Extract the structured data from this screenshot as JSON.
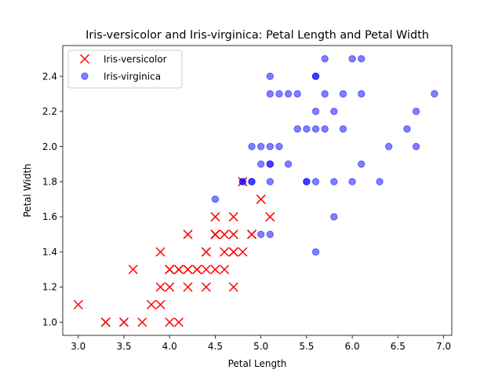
{
  "chart_data": {
    "type": "scatter",
    "title": "Iris-versicolor and Iris-virginica: Petal Length and Petal Width",
    "xlabel": "Petal Length",
    "ylabel": "Petal Width",
    "xlim": [
      2.83,
      7.09
    ],
    "ylim": [
      0.925,
      2.575
    ],
    "xticks": [
      "3.0",
      "3.5",
      "4.0",
      "4.5",
      "5.0",
      "5.5",
      "6.0",
      "6.5",
      "7.0"
    ],
    "yticks": [
      "1.0",
      "1.2",
      "1.4",
      "1.6",
      "1.8",
      "2.0",
      "2.2",
      "2.4"
    ],
    "legend_position": "upper-left",
    "grid": false,
    "series": [
      {
        "name": "Iris-versicolor",
        "marker": "x",
        "color": "#ff0000",
        "points": [
          [
            4.7,
            1.4
          ],
          [
            4.5,
            1.5
          ],
          [
            4.9,
            1.5
          ],
          [
            4.0,
            1.3
          ],
          [
            4.6,
            1.5
          ],
          [
            4.5,
            1.3
          ],
          [
            4.7,
            1.6
          ],
          [
            3.3,
            1.0
          ],
          [
            4.6,
            1.3
          ],
          [
            3.9,
            1.4
          ],
          [
            3.5,
            1.0
          ],
          [
            4.2,
            1.5
          ],
          [
            4.0,
            1.0
          ],
          [
            4.7,
            1.4
          ],
          [
            3.6,
            1.3
          ],
          [
            4.4,
            1.4
          ],
          [
            4.5,
            1.5
          ],
          [
            4.1,
            1.0
          ],
          [
            4.5,
            1.5
          ],
          [
            3.9,
            1.1
          ],
          [
            4.8,
            1.8
          ],
          [
            4.0,
            1.3
          ],
          [
            4.9,
            1.5
          ],
          [
            4.7,
            1.2
          ],
          [
            4.3,
            1.3
          ],
          [
            4.4,
            1.4
          ],
          [
            4.8,
            1.4
          ],
          [
            5.0,
            1.7
          ],
          [
            4.5,
            1.5
          ],
          [
            3.5,
            1.0
          ],
          [
            3.8,
            1.1
          ],
          [
            3.7,
            1.0
          ],
          [
            3.9,
            1.2
          ],
          [
            5.1,
            1.6
          ],
          [
            4.5,
            1.5
          ],
          [
            4.5,
            1.6
          ],
          [
            4.7,
            1.5
          ],
          [
            4.4,
            1.3
          ],
          [
            4.1,
            1.3
          ],
          [
            4.0,
            1.3
          ],
          [
            4.4,
            1.2
          ],
          [
            4.6,
            1.4
          ],
          [
            4.0,
            1.2
          ],
          [
            3.3,
            1.0
          ],
          [
            4.2,
            1.3
          ],
          [
            4.2,
            1.2
          ],
          [
            4.2,
            1.3
          ],
          [
            4.3,
            1.3
          ],
          [
            3.0,
            1.1
          ],
          [
            4.1,
            1.3
          ]
        ]
      },
      {
        "name": "Iris-virginica",
        "marker": "o",
        "color": "#0000ff",
        "points": [
          [
            6.0,
            2.5
          ],
          [
            5.1,
            1.9
          ],
          [
            5.9,
            2.1
          ],
          [
            5.6,
            1.8
          ],
          [
            5.8,
            2.2
          ],
          [
            6.6,
            2.1
          ],
          [
            4.5,
            1.7
          ],
          [
            6.3,
            1.8
          ],
          [
            5.8,
            1.8
          ],
          [
            6.1,
            2.5
          ],
          [
            5.1,
            2.0
          ],
          [
            5.3,
            1.9
          ],
          [
            5.5,
            2.1
          ],
          [
            5.0,
            2.0
          ],
          [
            5.1,
            2.4
          ],
          [
            5.3,
            2.3
          ],
          [
            5.5,
            1.8
          ],
          [
            6.7,
            2.2
          ],
          [
            6.9,
            2.3
          ],
          [
            5.0,
            1.5
          ],
          [
            5.7,
            2.3
          ],
          [
            4.9,
            2.0
          ],
          [
            6.7,
            2.0
          ],
          [
            4.9,
            1.8
          ],
          [
            5.7,
            2.1
          ],
          [
            6.0,
            1.8
          ],
          [
            4.8,
            1.8
          ],
          [
            4.9,
            1.8
          ],
          [
            5.6,
            2.1
          ],
          [
            5.8,
            1.6
          ],
          [
            6.1,
            1.9
          ],
          [
            6.4,
            2.0
          ],
          [
            5.6,
            2.2
          ],
          [
            5.1,
            1.5
          ],
          [
            5.6,
            1.4
          ],
          [
            6.1,
            2.3
          ],
          [
            5.6,
            2.4
          ],
          [
            5.5,
            1.8
          ],
          [
            4.8,
            1.8
          ],
          [
            5.4,
            2.1
          ],
          [
            5.6,
            2.4
          ],
          [
            5.1,
            2.3
          ],
          [
            5.1,
            1.9
          ],
          [
            5.9,
            2.3
          ],
          [
            5.7,
            2.5
          ],
          [
            5.2,
            2.3
          ],
          [
            5.0,
            1.9
          ],
          [
            5.2,
            2.0
          ],
          [
            5.4,
            2.3
          ],
          [
            5.1,
            1.8
          ]
        ]
      }
    ]
  }
}
